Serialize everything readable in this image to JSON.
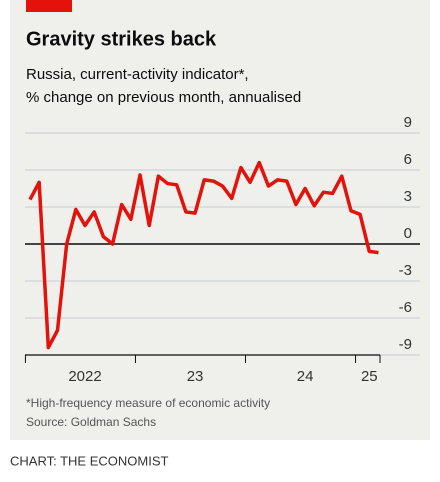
{
  "chart_data": {
    "type": "line",
    "title": "Gravity strikes back",
    "subtitle": [
      "Russia, current-activity indicator*,",
      "% change on previous month, annualised"
    ],
    "categories": [
      null,
      null,
      null,
      null,
      null,
      null,
      "2022",
      null,
      null,
      null,
      null,
      null,
      null,
      null,
      null,
      null,
      null,
      null,
      "23",
      null,
      null,
      null,
      null,
      null,
      null,
      null,
      null,
      null,
      null,
      null,
      "24",
      null,
      null,
      null,
      null,
      null,
      null,
      "25",
      null
    ],
    "series": [
      {
        "name": "Current-activity indicator",
        "color": "#e3120b",
        "values": [
          3.6,
          5,
          -8.4,
          -7,
          0,
          2.8,
          1.5,
          2.6,
          0.6,
          0,
          3.2,
          2,
          5.6,
          1.5,
          5.5,
          4.9,
          4.8,
          2.6,
          2.5,
          5.2,
          5.1,
          4.7,
          3.7,
          6.2,
          5,
          6.6,
          4.7,
          5.2,
          5.1,
          3.2,
          4.5,
          3.1,
          4.2,
          4.1,
          5.5,
          2.7,
          2.4,
          -0.6,
          -0.7
        ]
      }
    ],
    "ylim": [
      -9,
      9
    ],
    "yticks": [
      9,
      6,
      3,
      0,
      -3,
      -6,
      -9
    ],
    "grid": true,
    "footnote": "*High-frequency measure of economic activity",
    "source": "Source: Goldman Sachs",
    "credit": "CHART: THE ECONOMIST"
  }
}
